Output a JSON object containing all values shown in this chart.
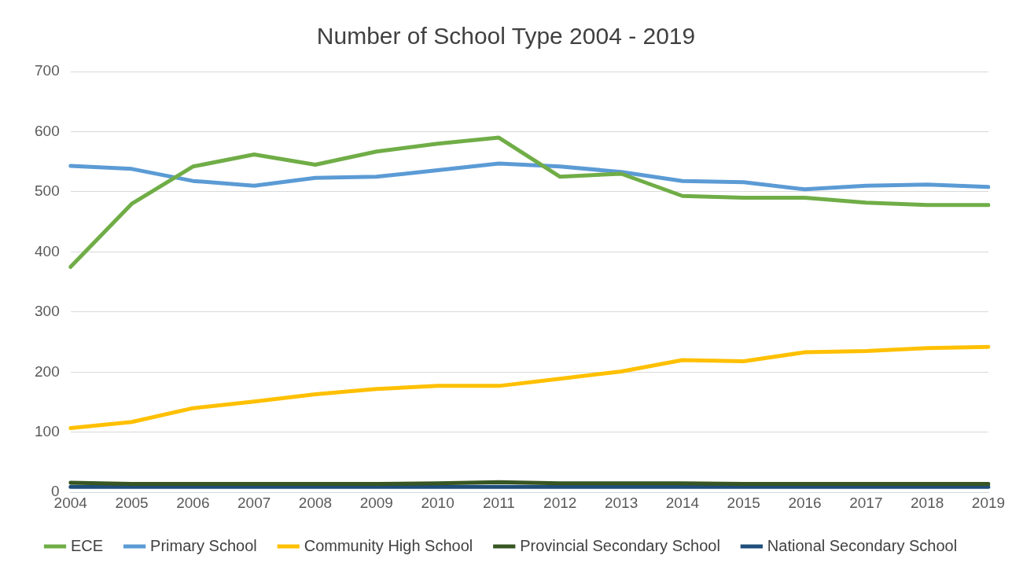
{
  "chart_data": {
    "type": "line",
    "title": "Number of School Type 2004 - 2019",
    "categories": [
      "2004",
      "2005",
      "2006",
      "2007",
      "2008",
      "2009",
      "2010",
      "2011",
      "2012",
      "2013",
      "2014",
      "2015",
      "2016",
      "2017",
      "2018",
      "2019"
    ],
    "series": [
      {
        "name": "ECE",
        "color": "#70ad47",
        "values": [
          375,
          480,
          542,
          562,
          545,
          567,
          580,
          590,
          525,
          530,
          493,
          490,
          490,
          482,
          478,
          478
        ]
      },
      {
        "name": "Primary School",
        "color": "#5b9bd5",
        "values": [
          543,
          538,
          518,
          510,
          523,
          525,
          536,
          547,
          542,
          533,
          518,
          516,
          504,
          510,
          512,
          508
        ]
      },
      {
        "name": "Community High School",
        "color": "#ffc000",
        "values": [
          107,
          117,
          140,
          151,
          163,
          172,
          177,
          177,
          189,
          201,
          220,
          218,
          233,
          235,
          240,
          242
        ]
      },
      {
        "name": "Provincial Secondary School",
        "color": "#375623",
        "values": [
          16,
          14,
          14,
          14,
          14,
          14,
          15,
          17,
          15,
          15,
          15,
          14,
          14,
          14,
          14,
          14
        ]
      },
      {
        "name": "National Secondary School",
        "color": "#1f4e79",
        "values": [
          9,
          9,
          9,
          9,
          9,
          9,
          9,
          9,
          9,
          9,
          9,
          9,
          9,
          9,
          9,
          9
        ]
      }
    ],
    "ylim": [
      0,
      700
    ],
    "yticks": [
      0,
      100,
      200,
      300,
      400,
      500,
      600,
      700
    ],
    "grid": "y",
    "legend": "bottom",
    "marker": "none",
    "line_style": "solid"
  }
}
